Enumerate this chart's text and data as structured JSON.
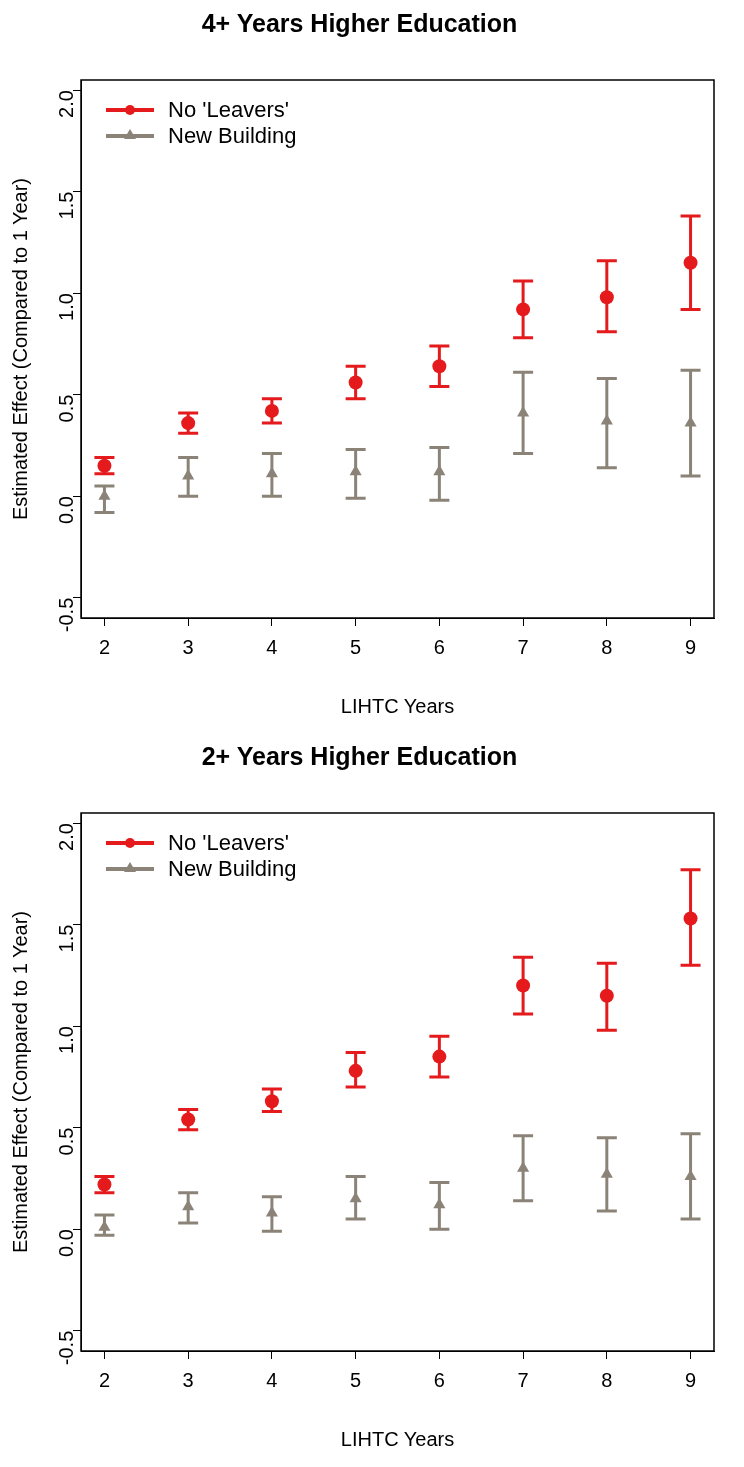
{
  "chart_data": [
    {
      "type": "scatter",
      "title": "4+ Years Higher Education",
      "xlabel": "LIHTC Years",
      "ylabel": "Estimated Effect (Compared to 1 Year)",
      "x": [
        2,
        3,
        4,
        5,
        6,
        7,
        8,
        9
      ],
      "xlim": [
        1.72,
        9.28
      ],
      "xticks": [
        2,
        3,
        4,
        5,
        6,
        7,
        8,
        9
      ],
      "ylim": [
        -0.6,
        2.05
      ],
      "yticks": [
        {
          "value": -0.5,
          "label": "-0.5"
        },
        {
          "value": 0,
          "label": "0.0"
        },
        {
          "value": 0.5,
          "label": "0.5"
        },
        {
          "value": 1,
          "label": "1.0"
        },
        {
          "value": 1.5,
          "label": "1.5"
        },
        {
          "value": 2,
          "label": "2.0"
        }
      ],
      "grid": false,
      "legend": "top left",
      "series": [
        {
          "name": "No 'Leavers'",
          "color": "#e41a1c",
          "marker": "circle",
          "values": [
            0.15,
            0.36,
            0.42,
            0.56,
            0.64,
            0.92,
            0.98,
            1.15
          ],
          "errors": [
            [
              0.11,
              0.19
            ],
            [
              0.31,
              0.41
            ],
            [
              0.36,
              0.48
            ],
            [
              0.48,
              0.64
            ],
            [
              0.54,
              0.74
            ],
            [
              0.78,
              1.06
            ],
            [
              0.81,
              1.16
            ],
            [
              0.92,
              1.38
            ]
          ]
        },
        {
          "name": "New Building",
          "color": "#8b8378",
          "marker": "triangle",
          "values": [
            0.0,
            0.1,
            0.11,
            0.12,
            0.12,
            0.41,
            0.37,
            0.36
          ],
          "errors": [
            [
              -0.08,
              0.05
            ],
            [
              0.0,
              0.19
            ],
            [
              0.0,
              0.21
            ],
            [
              -0.01,
              0.23
            ],
            [
              -0.02,
              0.24
            ],
            [
              0.21,
              0.61
            ],
            [
              0.14,
              0.58
            ],
            [
              0.1,
              0.62
            ]
          ]
        }
      ]
    },
    {
      "type": "scatter",
      "title": "2+ Years Higher Education",
      "xlabel": "LIHTC Years",
      "ylabel": "Estimated Effect (Compared to 1 Year)",
      "x": [
        2,
        3,
        4,
        5,
        6,
        7,
        8,
        9
      ],
      "xlim": [
        1.72,
        9.28
      ],
      "xticks": [
        2,
        3,
        4,
        5,
        6,
        7,
        8,
        9
      ],
      "ylim": [
        -0.6,
        2.05
      ],
      "yticks": [
        {
          "value": -0.5,
          "label": "-0.5"
        },
        {
          "value": 0,
          "label": "0.0"
        },
        {
          "value": 0.5,
          "label": "0.5"
        },
        {
          "value": 1,
          "label": "1.0"
        },
        {
          "value": 1.5,
          "label": "1.5"
        },
        {
          "value": 2,
          "label": "2.0"
        }
      ],
      "grid": false,
      "legend": "top left",
      "series": [
        {
          "name": "No 'Leavers'",
          "color": "#e41a1c",
          "marker": "circle",
          "values": [
            0.22,
            0.54,
            0.63,
            0.78,
            0.85,
            1.2,
            1.15,
            1.53
          ],
          "errors": [
            [
              0.18,
              0.26
            ],
            [
              0.49,
              0.59
            ],
            [
              0.58,
              0.69
            ],
            [
              0.7,
              0.87
            ],
            [
              0.75,
              0.95
            ],
            [
              1.06,
              1.34
            ],
            [
              0.98,
              1.31
            ],
            [
              1.3,
              1.77
            ]
          ]
        },
        {
          "name": "New Building",
          "color": "#8b8378",
          "marker": "triangle",
          "values": [
            0.01,
            0.11,
            0.08,
            0.15,
            0.12,
            0.3,
            0.27,
            0.26
          ],
          "errors": [
            [
              -0.03,
              0.07
            ],
            [
              0.03,
              0.18
            ],
            [
              -0.01,
              0.16
            ],
            [
              0.05,
              0.26
            ],
            [
              0.0,
              0.23
            ],
            [
              0.14,
              0.46
            ],
            [
              0.09,
              0.45
            ],
            [
              0.05,
              0.47
            ]
          ]
        }
      ]
    }
  ]
}
